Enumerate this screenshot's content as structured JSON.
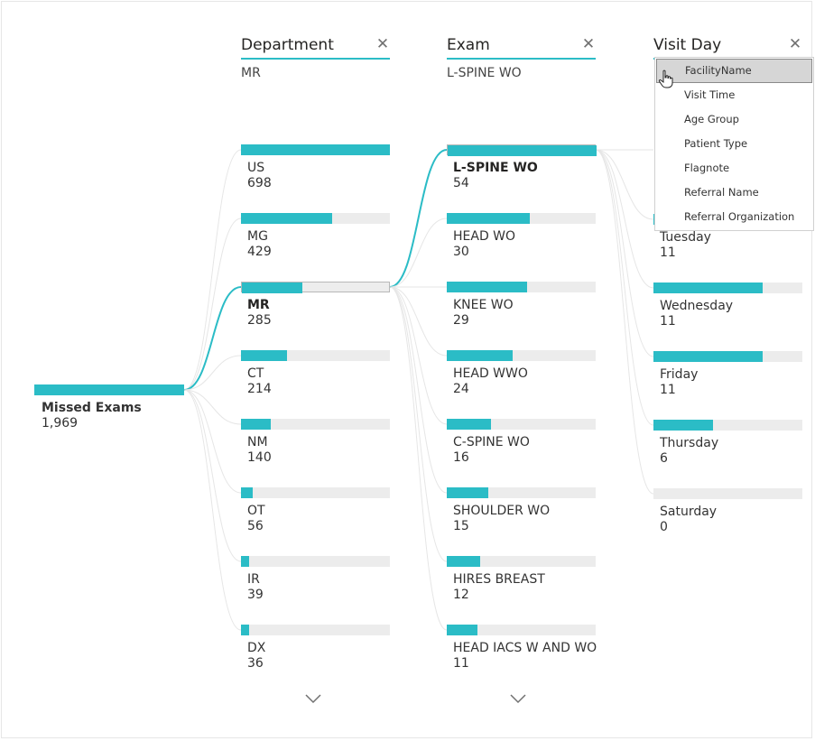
{
  "accent_color": "#2bbcc6",
  "root": {
    "label": "Missed Exams",
    "value": "1,969"
  },
  "columns": [
    {
      "title": "Department",
      "filter": "MR",
      "close_icon": "close-icon"
    },
    {
      "title": "Exam",
      "filter": "L-SPINE WO",
      "close_icon": "close-icon"
    },
    {
      "title": "Visit Day",
      "close_icon": "close-icon"
    }
  ],
  "department": [
    {
      "label": "US",
      "value": "698",
      "fraction": 1.0
    },
    {
      "label": "MG",
      "value": "429",
      "fraction": 0.615
    },
    {
      "label": "MR",
      "value": "285",
      "fraction": 0.408,
      "selected": true
    },
    {
      "label": "CT",
      "value": "214",
      "fraction": 0.307
    },
    {
      "label": "NM",
      "value": "140",
      "fraction": 0.2
    },
    {
      "label": "OT",
      "value": "56",
      "fraction": 0.08
    },
    {
      "label": "IR",
      "value": "39",
      "fraction": 0.056
    },
    {
      "label": "DX",
      "value": "36",
      "fraction": 0.052
    }
  ],
  "exam": [
    {
      "label": "L-SPINE WO",
      "value": "54",
      "fraction": 1.0,
      "selected": true
    },
    {
      "label": "HEAD WO",
      "value": "30",
      "fraction": 0.556
    },
    {
      "label": "KNEE WO",
      "value": "29",
      "fraction": 0.537
    },
    {
      "label": "HEAD WWO",
      "value": "24",
      "fraction": 0.444
    },
    {
      "label": "C-SPINE WO",
      "value": "16",
      "fraction": 0.296
    },
    {
      "label": "SHOULDER WO",
      "value": "15",
      "fraction": 0.278
    },
    {
      "label": "HIRES BREAST",
      "value": "12",
      "fraction": 0.222
    },
    {
      "label": "HEAD IACS W AND WO",
      "value": "11",
      "fraction": 0.204
    }
  ],
  "visit_day": [
    {
      "label": "Tuesday",
      "value": "11",
      "fraction": 0.733
    },
    {
      "label": "Wednesday",
      "value": "11",
      "fraction": 0.733
    },
    {
      "label": "Friday",
      "value": "11",
      "fraction": 0.733
    },
    {
      "label": "Thursday",
      "value": "6",
      "fraction": 0.4
    },
    {
      "label": "Saturday",
      "value": "0",
      "fraction": 0.0
    }
  ],
  "dropdown": {
    "items": [
      "FacilityName",
      "Visit Time",
      "Age Group",
      "Patient Type",
      "Flagnote",
      "Referral Name",
      "Referral Organization"
    ],
    "hovered": "FacilityName"
  },
  "scroll_icons": [
    "chevron-down-icon",
    "chevron-down-icon"
  ],
  "cursor_icon": "hand-pointer-icon"
}
